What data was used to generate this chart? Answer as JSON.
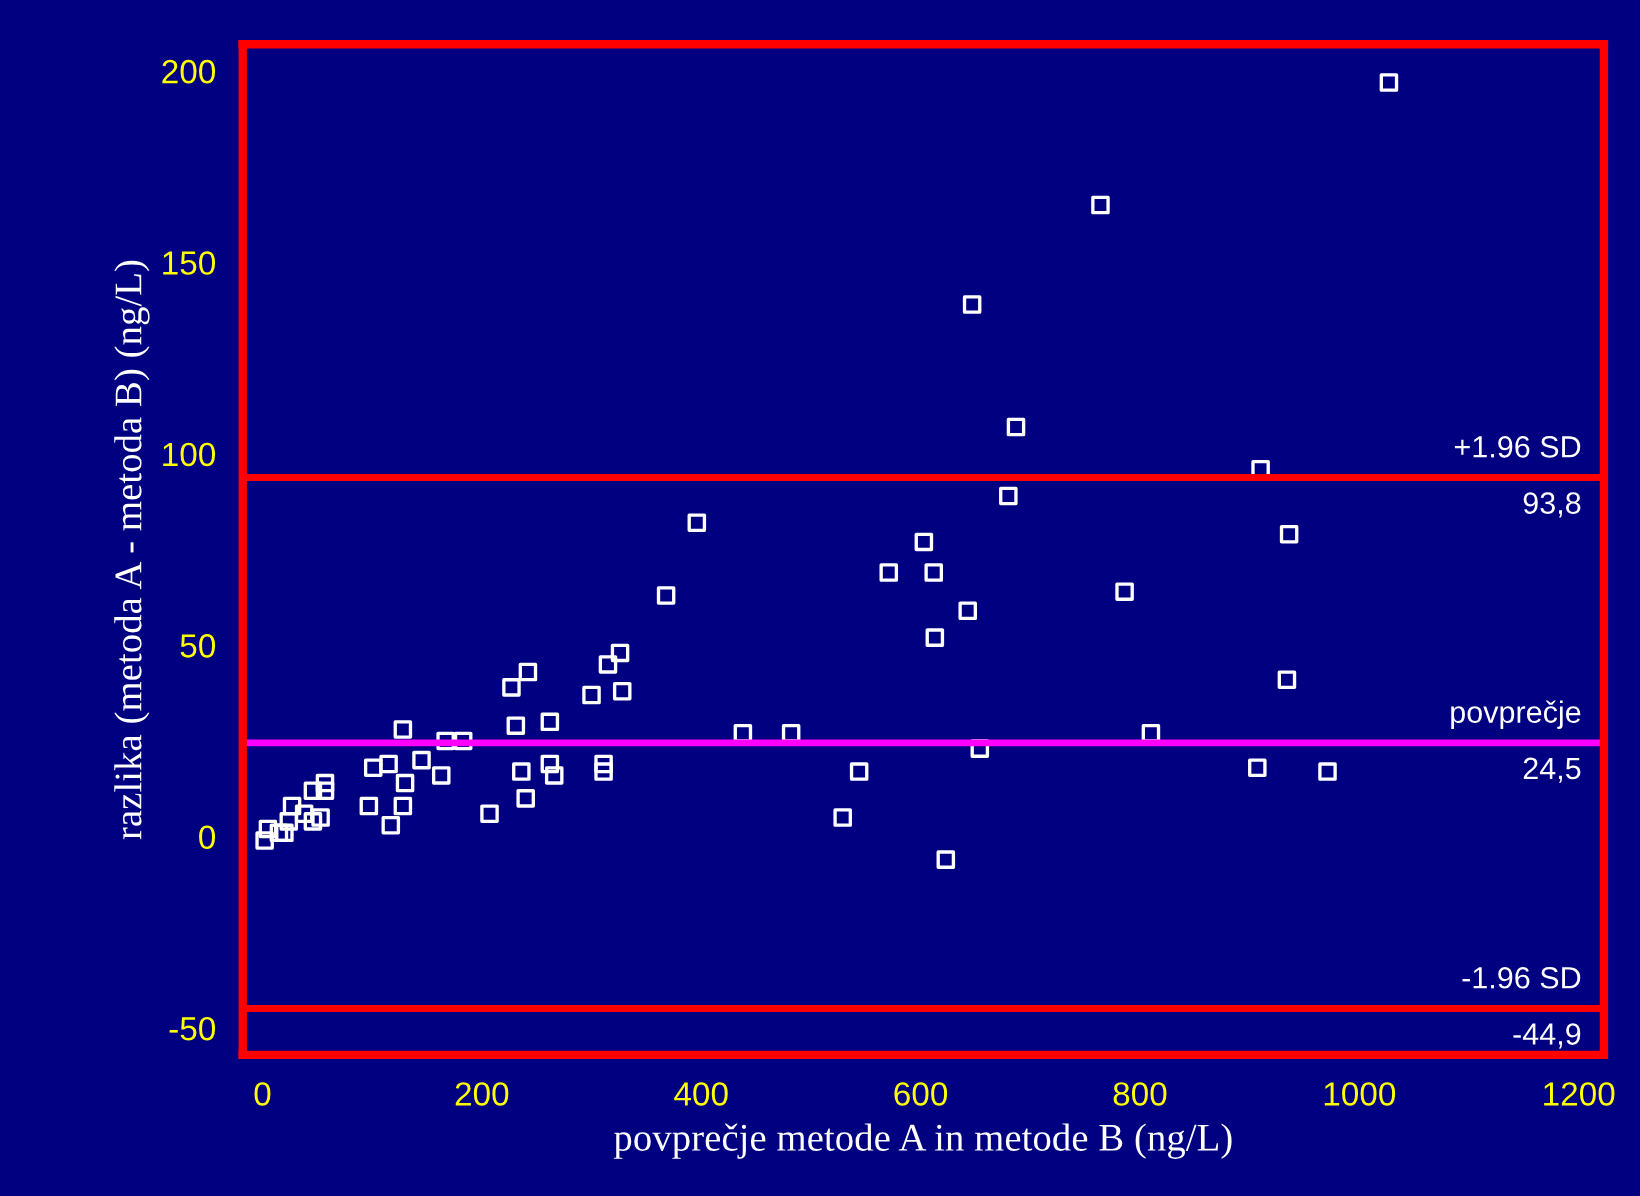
{
  "chart_data": {
    "type": "scatter",
    "xlabel": "povprečje metode A in metode B (ng/L)",
    "ylabel": "razlika (metoda A - metoda B) (ng/L)",
    "marker": "square",
    "grid": false,
    "xlim": [
      -18,
      1223
    ],
    "ylim": [
      -57,
      207
    ],
    "xticks": [
      0,
      200,
      400,
      600,
      800,
      1000,
      1200
    ],
    "yticks": [
      -50,
      0,
      50,
      100,
      150,
      200
    ],
    "series": [
      {
        "color": "#ffffff",
        "x": [
          1027,
          764,
          647,
          687,
          910,
          680,
          936,
          603,
          571,
          612,
          643,
          613,
          786,
          934,
          482,
          810,
          654,
          544,
          907,
          971,
          529,
          623,
          396,
          368,
          326,
          315,
          328,
          300,
          242,
          227,
          231,
          262,
          128,
          167,
          183,
          438,
          101,
          115,
          145,
          163,
          130,
          236,
          262,
          266,
          311,
          311,
          97,
          128,
          117,
          240,
          207,
          57,
          57,
          46,
          27,
          38,
          53,
          46,
          24,
          5,
          20,
          2,
          15
        ],
        "values": [
          197,
          165,
          139,
          107,
          96,
          89,
          79,
          77,
          69,
          69,
          59,
          52,
          64,
          41,
          27,
          27,
          23,
          17,
          18,
          17,
          5,
          -6,
          82,
          63,
          48,
          45,
          38,
          37,
          43,
          39,
          29,
          30,
          28,
          25,
          25,
          27,
          18,
          19,
          20,
          16,
          14,
          17,
          19,
          16,
          19,
          17,
          8,
          8,
          3,
          10,
          6,
          14,
          12,
          12,
          8,
          6,
          5,
          4,
          4,
          2,
          1,
          -1,
          1
        ]
      }
    ],
    "ref_lines": [
      {
        "axis": "y",
        "value": 93.8,
        "label": "+1.96 SD",
        "color": "#ff0000"
      },
      {
        "axis": "y",
        "value": 24.5,
        "label": "povprečje",
        "color": "#ff00ff"
      },
      {
        "axis": "y",
        "value": -44.9,
        "label": "-1.96 SD",
        "color": "#ff0000"
      }
    ],
    "annotations": [
      {
        "text": "93,8",
        "y": 93.8
      },
      {
        "text": "24,5",
        "y": 24.5
      },
      {
        "text": "-44,9",
        "y": -44.9
      }
    ]
  }
}
